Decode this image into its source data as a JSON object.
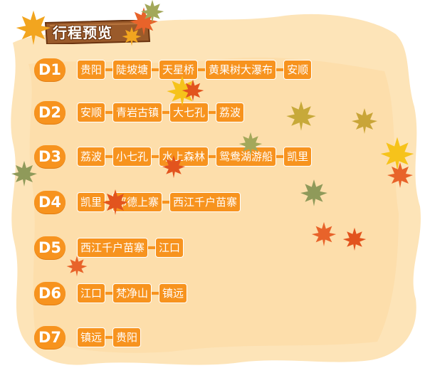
{
  "title": "行程预览",
  "days": [
    {
      "label": "D1",
      "stops": [
        "贵阳",
        "陡坡塘",
        "天星桥",
        "黄果树大瀑布",
        "安顺"
      ]
    },
    {
      "label": "D2",
      "stops": [
        "安顺",
        "青岩古镇",
        "大七孔",
        "荔波"
      ]
    },
    {
      "label": "D3",
      "stops": [
        "荔波",
        "小七孔",
        "水上森林",
        "鸳鸯湖游船",
        "凯里"
      ]
    },
    {
      "label": "D4",
      "stops": [
        "凯里",
        "郎德上寨",
        "西江千户苗寨"
      ]
    },
    {
      "label": "D5",
      "stops": [
        "西江千户苗寨",
        "江口"
      ]
    },
    {
      "label": "D6",
      "stops": [
        "江口",
        "梵净山",
        "镇远"
      ]
    },
    {
      "label": "D7",
      "stops": [
        "镇远",
        "贵阳"
      ]
    }
  ],
  "colors": {
    "accent": "#f7931e",
    "paper": "#fde4b8",
    "board": "#9a5a2a"
  }
}
